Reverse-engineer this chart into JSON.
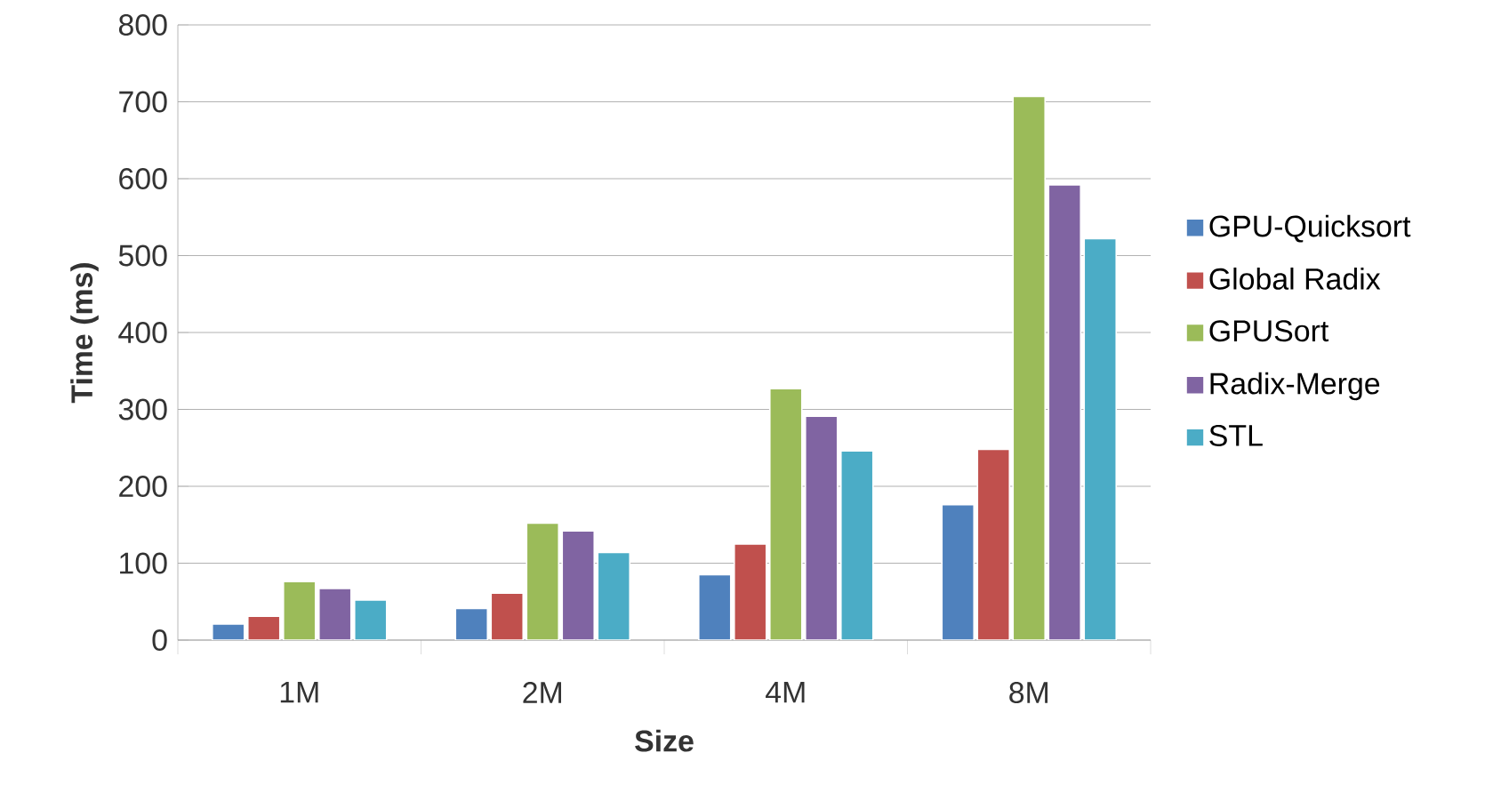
{
  "chart_data": {
    "type": "bar",
    "xlabel": "Size",
    "ylabel": "Time (ms)",
    "categories": [
      "1M",
      "2M",
      "4M",
      "8M"
    ],
    "series": [
      {
        "name": "GPU-Quicksort",
        "color": "#4f81bd",
        "values": [
          21,
          41,
          85,
          176
        ]
      },
      {
        "name": "Global Radix",
        "color": "#c0504d",
        "values": [
          31,
          61,
          125,
          248
        ]
      },
      {
        "name": "GPUSort",
        "color": "#9bbb59",
        "values": [
          76,
          152,
          327,
          707
        ]
      },
      {
        "name": "Radix-Merge",
        "color": "#8064a2",
        "values": [
          67,
          142,
          291,
          592
        ]
      },
      {
        "name": "STL",
        "color": "#4bacc6",
        "values": [
          52,
          114,
          246,
          522
        ]
      }
    ],
    "ylim": [
      0,
      800
    ],
    "yticks": [
      0,
      100,
      200,
      300,
      400,
      500,
      600,
      700,
      800
    ],
    "grid": "y",
    "legend": "right"
  }
}
